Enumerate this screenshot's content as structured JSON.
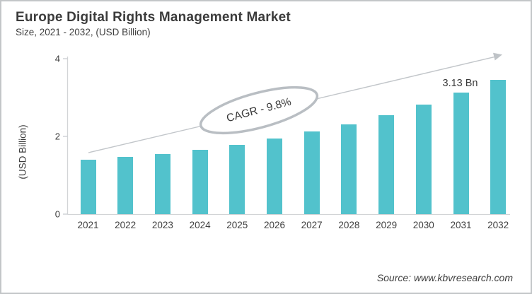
{
  "header": {
    "title": "Europe Digital Rights Management Market",
    "subtitle": "Size, 2021 - 2032, (USD Billion)"
  },
  "chart_data": {
    "type": "bar",
    "title": "Europe Digital Rights Management Market",
    "subtitle": "Size, 2021 - 2032, (USD Billion)",
    "categories": [
      "2021",
      "2022",
      "2023",
      "2024",
      "2025",
      "2026",
      "2027",
      "2028",
      "2029",
      "2030",
      "2031",
      "2032"
    ],
    "values": [
      1.4,
      1.47,
      1.55,
      1.65,
      1.78,
      1.94,
      2.12,
      2.31,
      2.55,
      2.82,
      3.13,
      3.45
    ],
    "xlabel": "",
    "ylabel": "(USD Billion)",
    "ylim": [
      0,
      4
    ],
    "yticks": [
      0,
      2,
      4
    ],
    "grid": false,
    "legend": "none",
    "bar_color": "#52c2cc",
    "annotations": {
      "cagr_label": "CAGR - 9.8%",
      "data_label": {
        "category": "2031",
        "text": "3.13 Bn"
      },
      "trend_arrow": true
    }
  },
  "footer": {
    "source": "Source: www.kbvresearch.com"
  },
  "colors": {
    "bar": "#52c2cc",
    "arrow": "#c2c6ca",
    "ellipse_stroke": "#b9bec3",
    "axis_line": "#d2d4d6",
    "text_dark": "#3b3b3b"
  }
}
